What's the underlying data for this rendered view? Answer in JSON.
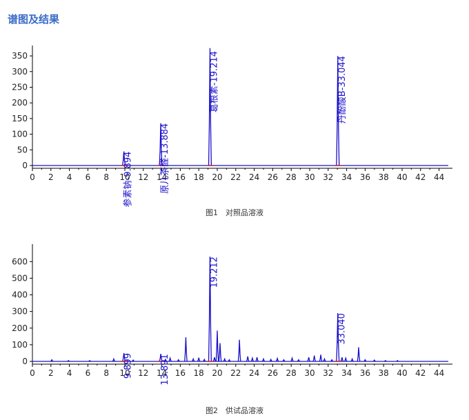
{
  "heading": "谱图及结果",
  "colors": {
    "heading": "#3a6cc8",
    "trace": "#1a10c8",
    "baseline": "#d11a1a"
  },
  "chart_data": [
    {
      "type": "line",
      "caption": "图1　对照品溶液",
      "xlim": [
        0,
        45
      ],
      "ylim": [
        0,
        370
      ],
      "x_ticks": [
        "0",
        "2",
        "4",
        "6",
        "8",
        "10",
        "12",
        "14",
        "16",
        "18",
        "20",
        "22",
        "24",
        "26",
        "28",
        "30",
        "32",
        "34",
        "36",
        "38",
        "40",
        "42",
        "44"
      ],
      "y_ticks": [
        "0",
        "50",
        "100",
        "150",
        "200",
        "250",
        "300",
        "350"
      ],
      "peaks": [
        {
          "rt": 9.894,
          "height": 45,
          "label": "丹参素钠-9.894"
        },
        {
          "rt": 13.884,
          "height": 135,
          "label": "原儿茶醛-13.884"
        },
        {
          "rt": 19.214,
          "height": 375,
          "label": "葛根素-19.214"
        },
        {
          "rt": 33.044,
          "height": 350,
          "label": "丹酚酸B-33.044"
        }
      ],
      "minor_peaks": []
    },
    {
      "type": "line",
      "caption": "图2　供试品溶液",
      "xlim": [
        0,
        45
      ],
      "ylim": [
        0,
        680
      ],
      "x_ticks": [
        "0",
        "2",
        "4",
        "6",
        "8",
        "10",
        "12",
        "14",
        "16",
        "18",
        "20",
        "22",
        "24",
        "26",
        "28",
        "30",
        "32",
        "34",
        "36",
        "38",
        "40",
        "42",
        "44"
      ],
      "y_ticks": [
        "0",
        "100",
        "200",
        "300",
        "400",
        "500",
        "600"
      ],
      "peaks": [
        {
          "rt": 9.899,
          "height": 50,
          "label": "9.899"
        },
        {
          "rt": 13.891,
          "height": 45,
          "label": "13.891"
        },
        {
          "rt": 19.212,
          "height": 630,
          "label": "19.212"
        },
        {
          "rt": 33.04,
          "height": 290,
          "label": "33.040"
        }
      ],
      "minor_peaks": [
        {
          "rt": 2.1,
          "height": 10
        },
        {
          "rt": 3.9,
          "height": 5
        },
        {
          "rt": 6.2,
          "height": 5
        },
        {
          "rt": 8.8,
          "height": 15
        },
        {
          "rt": 10.9,
          "height": 8
        },
        {
          "rt": 14.4,
          "height": 12
        },
        {
          "rt": 14.9,
          "height": 20
        },
        {
          "rt": 15.8,
          "height": 10
        },
        {
          "rt": 16.6,
          "height": 145
        },
        {
          "rt": 17.4,
          "height": 15
        },
        {
          "rt": 18.0,
          "height": 22
        },
        {
          "rt": 18.6,
          "height": 12
        },
        {
          "rt": 19.7,
          "height": 25
        },
        {
          "rt": 20.0,
          "height": 185
        },
        {
          "rt": 20.3,
          "height": 110
        },
        {
          "rt": 20.8,
          "height": 15
        },
        {
          "rt": 21.3,
          "height": 10
        },
        {
          "rt": 22.4,
          "height": 130
        },
        {
          "rt": 23.3,
          "height": 30
        },
        {
          "rt": 23.8,
          "height": 20
        },
        {
          "rt": 24.3,
          "height": 25
        },
        {
          "rt": 25.0,
          "height": 15
        },
        {
          "rt": 25.8,
          "height": 12
        },
        {
          "rt": 26.5,
          "height": 18
        },
        {
          "rt": 27.2,
          "height": 10
        },
        {
          "rt": 28.1,
          "height": 20
        },
        {
          "rt": 28.8,
          "height": 10
        },
        {
          "rt": 29.9,
          "height": 25
        },
        {
          "rt": 30.5,
          "height": 35
        },
        {
          "rt": 31.2,
          "height": 40
        },
        {
          "rt": 31.6,
          "height": 15
        },
        {
          "rt": 32.4,
          "height": 10
        },
        {
          "rt": 33.5,
          "height": 25
        },
        {
          "rt": 33.9,
          "height": 20
        },
        {
          "rt": 34.6,
          "height": 15
        },
        {
          "rt": 35.3,
          "height": 85
        },
        {
          "rt": 36.0,
          "height": 10
        },
        {
          "rt": 37.0,
          "height": 8
        },
        {
          "rt": 38.2,
          "height": 5
        },
        {
          "rt": 39.5,
          "height": 5
        }
      ]
    }
  ]
}
